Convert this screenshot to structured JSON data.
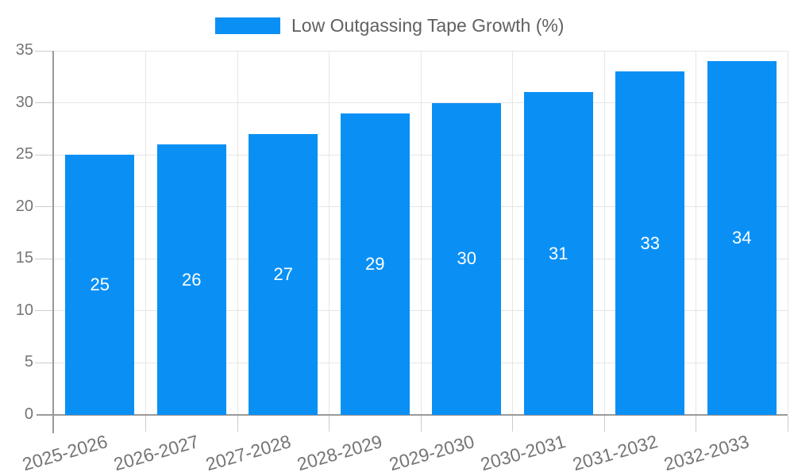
{
  "chart_data": {
    "type": "bar",
    "title": "Low Outgassing Tape Growth (%)",
    "categories": [
      "2025-2026",
      "2026-2027",
      "2027-2028",
      "2028-2029",
      "2029-2030",
      "2030-2031",
      "2031-2032",
      "2032-2033"
    ],
    "values": [
      25,
      26,
      27,
      29,
      30,
      31,
      33,
      34
    ],
    "xlabel": "",
    "ylabel": "",
    "ylim": [
      0,
      35
    ],
    "yticks": [
      0,
      5,
      10,
      15,
      20,
      25,
      30,
      35
    ],
    "grid": true,
    "legend_position": "top",
    "bar_value_labels": true
  },
  "legend": {
    "label": "Low Outgassing Tape Growth (%)"
  },
  "colors": {
    "bar": "#0a90f5",
    "bar_value_label": "#ffffff",
    "axis_line": "#999999",
    "tick": "#cccccc",
    "gridline": "#e6e6e6",
    "axis_label": "#757575",
    "legend_text": "#616161",
    "background": "#ffffff"
  }
}
